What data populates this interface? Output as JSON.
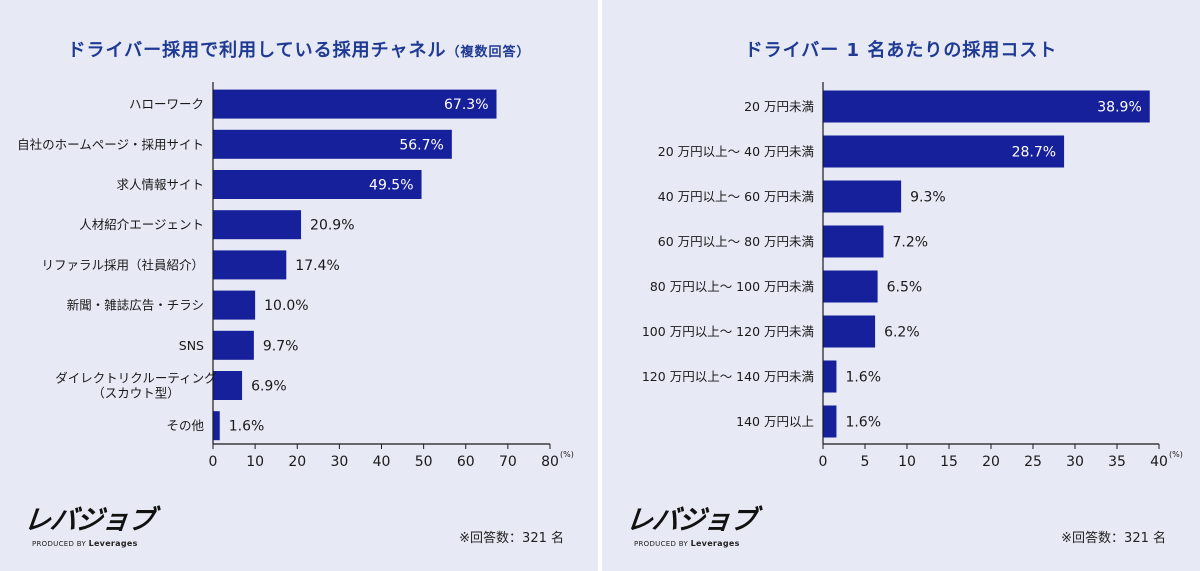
{
  "panels": [
    {
      "title": "ドライバー採用で利用している採用チャネル",
      "title_sub": "（複数回答）",
      "respondents": "※回答数：321 名"
    },
    {
      "title": "ドライバー 1 名あたりの採用コスト",
      "title_sub": "",
      "respondents": "※回答数：321 名"
    }
  ],
  "logo": {
    "main": "レバジョブ",
    "sub_prefix": "PRODUCED BY ",
    "sub_brand": "Leverages"
  },
  "colors": {
    "bar": "#16209a",
    "background": "#e7e9f5",
    "title": "#1f3a93"
  },
  "chart_data": [
    {
      "type": "bar",
      "orientation": "horizontal",
      "title": "ドライバー採用で利用している採用チャネル（複数回答）",
      "categories": [
        "ハローワーク",
        "自社のホームページ・採用サイト",
        "求人情報サイト",
        "人材紹介エージェント",
        "リファラル採用（社員紹介）",
        "新聞・雑誌広告・チラシ",
        "SNS",
        "ダイレクトリクルーティング\n（スカウト型）",
        "その他"
      ],
      "values": [
        67.3,
        56.7,
        49.5,
        20.9,
        17.4,
        10.0,
        9.7,
        6.9,
        1.6
      ],
      "value_labels": [
        "67.3%",
        "56.7%",
        "49.5%",
        "20.9%",
        "17.4%",
        "10.0%",
        "9.7%",
        "6.9%",
        "1.6%"
      ],
      "xlim": [
        0,
        80
      ],
      "xticks": [
        0,
        10,
        20,
        30,
        40,
        50,
        60,
        70,
        80
      ],
      "unit": "(%)",
      "grid": false
    },
    {
      "type": "bar",
      "orientation": "horizontal",
      "title": "ドライバー 1 名あたりの採用コスト",
      "categories": [
        "20 万円未満",
        "20 万円以上～ 40 万円未満",
        "40 万円以上～ 60 万円未満",
        "60 万円以上～ 80 万円未満",
        "80 万円以上～ 100 万円未満",
        "100 万円以上～ 120 万円未満",
        "120 万円以上～ 140 万円未満",
        "140 万円以上"
      ],
      "values": [
        38.9,
        28.7,
        9.3,
        7.2,
        6.5,
        6.2,
        1.6,
        1.6
      ],
      "value_labels": [
        "38.9%",
        "28.7%",
        "9.3%",
        "7.2%",
        "6.5%",
        "6.2%",
        "1.6%",
        "1.6%"
      ],
      "xlim": [
        0,
        40
      ],
      "xticks": [
        0,
        5,
        10,
        15,
        20,
        25,
        30,
        35,
        40
      ],
      "unit": "(%)",
      "grid": false
    }
  ]
}
